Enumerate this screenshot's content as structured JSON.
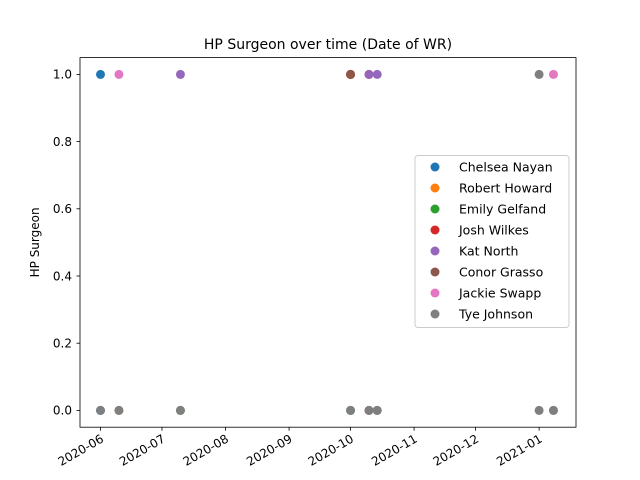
{
  "chart_data": {
    "type": "scatter",
    "title": "HP Surgeon over time (Date of WR)",
    "xlabel": "",
    "ylabel": "HP Surgeon",
    "xlim": [
      "2020-05-22",
      "2021-01-19"
    ],
    "ylim": [
      -0.05,
      1.05
    ],
    "x_ticks": [
      "2020-06",
      "2020-07",
      "2020-08",
      "2020-09",
      "2020-10",
      "2020-11",
      "2020-12",
      "2021-01"
    ],
    "y_ticks": [
      "0.0",
      "0.2",
      "0.4",
      "0.6",
      "0.8",
      "1.0"
    ],
    "grid": false,
    "legend_position": "center-right",
    "series": [
      {
        "name": "Chelsea Nayan",
        "color": "#1f77b4",
        "points": [
          {
            "x": "2020-06-01",
            "y": 1
          },
          {
            "x": "2020-06-01",
            "y": 0
          }
        ]
      },
      {
        "name": "Robert Howard",
        "color": "#ff7f0e",
        "points": [
          {
            "x": "2020-06-10",
            "y": 0
          },
          {
            "x": "2020-10-01",
            "y": 1
          }
        ]
      },
      {
        "name": "Emily Gelfand",
        "color": "#2ca02c",
        "points": [
          {
            "x": "2020-07-10",
            "y": 0
          },
          {
            "x": "2020-10-01",
            "y": 0
          }
        ]
      },
      {
        "name": "Josh Wilkes",
        "color": "#d62728",
        "points": [
          {
            "x": "2020-10-01",
            "y": 1
          },
          {
            "x": "2020-10-10",
            "y": 1
          }
        ]
      },
      {
        "name": "Kat North",
        "color": "#9467bd",
        "points": [
          {
            "x": "2020-07-10",
            "y": 1
          },
          {
            "x": "2020-10-10",
            "y": 1
          },
          {
            "x": "2020-10-14",
            "y": 1
          },
          {
            "x": "2020-10-14",
            "y": 0
          }
        ]
      },
      {
        "name": "Conor Grasso",
        "color": "#8c564b",
        "points": [
          {
            "x": "2020-10-01",
            "y": 1
          },
          {
            "x": "2020-10-10",
            "y": 0
          }
        ]
      },
      {
        "name": "Jackie Swapp",
        "color": "#e377c2",
        "points": [
          {
            "x": "2020-06-10",
            "y": 1
          },
          {
            "x": "2021-01-08",
            "y": 1
          },
          {
            "x": "2021-01-08",
            "y": 0
          }
        ]
      },
      {
        "name": "Tye Johnson",
        "color": "#7f7f7f",
        "points": [
          {
            "x": "2020-06-01",
            "y": 0
          },
          {
            "x": "2020-06-10",
            "y": 0
          },
          {
            "x": "2020-07-10",
            "y": 0
          },
          {
            "x": "2020-10-01",
            "y": 0
          },
          {
            "x": "2020-10-10",
            "y": 0
          },
          {
            "x": "2020-10-14",
            "y": 0
          },
          {
            "x": "2021-01-01",
            "y": 0
          },
          {
            "x": "2021-01-08",
            "y": 0
          },
          {
            "x": "2021-01-01",
            "y": 1
          }
        ]
      }
    ]
  }
}
